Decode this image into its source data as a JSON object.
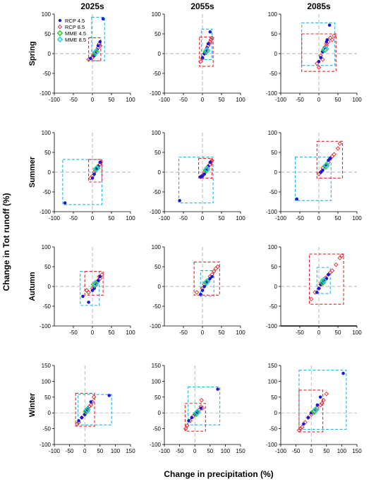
{
  "figure": {
    "column_headers": [
      "2025s",
      "2055s",
      "2085s"
    ],
    "row_labels": [
      "Spring",
      "Summer",
      "Autumn",
      "Winter"
    ],
    "ylabel": "Change in Tot runoff (%)",
    "xlabel": "Change in precipitation (%)",
    "legend": {
      "entries": [
        {
          "name": "RCP 4.5",
          "marker": "filled-circle",
          "color": "#1a1ad6"
        },
        {
          "name": "RCP 8.5",
          "marker": "open-diamond",
          "color": "#e8242b"
        },
        {
          "name": "MME 4.5",
          "marker": "open-diamond",
          "color": "#33cc33"
        },
        {
          "name": "MME 8.5",
          "marker": "open-diamond",
          "color": "#2fd4dc"
        }
      ],
      "placement": "top-left of first panel"
    },
    "colors": {
      "rcp45": "#1a1ad6",
      "rcp85": "#e8242b",
      "mme45": "#33cc33",
      "mme85": "#2fd4dc",
      "box45": "#22b3e6",
      "box85": "#e8242b",
      "crosshair": "#999999"
    }
  },
  "chart_data": [
    {
      "type": "scatter",
      "row": "Spring",
      "col": "2025s",
      "xlim": [
        -100,
        100
      ],
      "ylim": [
        -100,
        100
      ],
      "xticks": [
        -100,
        -50,
        0,
        50,
        100
      ],
      "yticks": [
        -100,
        -50,
        0,
        50,
        100
      ],
      "rcp45": [
        [
          28,
          88
        ],
        [
          20,
          30
        ],
        [
          12,
          10
        ],
        [
          5,
          -5
        ],
        [
          -5,
          -12
        ],
        [
          15,
          20
        ],
        [
          8,
          0
        ]
      ],
      "rcp85": [
        [
          -10,
          -15
        ],
        [
          0,
          -10
        ],
        [
          5,
          0
        ],
        [
          10,
          8
        ],
        [
          15,
          15
        ],
        [
          18,
          25
        ],
        [
          20,
          20
        ],
        [
          12,
          5
        ],
        [
          2,
          -5
        ]
      ],
      "mme45": [
        8,
        2
      ],
      "mme85": [
        10,
        5
      ],
      "box45": [
        -2,
        32,
        -18,
        92
      ],
      "box85": [
        -10,
        22,
        -18,
        40
      ],
      "crosshair": [
        0,
        0
      ]
    },
    {
      "type": "scatter",
      "row": "Spring",
      "col": "2055s",
      "xlim": [
        -100,
        100
      ],
      "ylim": [
        -100,
        100
      ],
      "xticks": [
        -100,
        -50,
        0,
        50,
        100
      ],
      "yticks": [
        -100,
        -50,
        0,
        50,
        100
      ],
      "rcp45": [
        [
          20,
          55
        ],
        [
          15,
          25
        ],
        [
          10,
          10
        ],
        [
          5,
          0
        ],
        [
          0,
          -10
        ],
        [
          12,
          15
        ],
        [
          8,
          5
        ]
      ],
      "rcp85": [
        [
          -5,
          -20
        ],
        [
          0,
          -12
        ],
        [
          5,
          0
        ],
        [
          10,
          10
        ],
        [
          15,
          20
        ],
        [
          20,
          30
        ],
        [
          18,
          25
        ],
        [
          8,
          5
        ],
        [
          25,
          40
        ],
        [
          22,
          35
        ]
      ],
      "mme45": [
        10,
        5
      ],
      "mme85": [
        12,
        8
      ],
      "box45": [
        -3,
        25,
        -15,
        62
      ],
      "box85": [
        -8,
        28,
        -32,
        42
      ],
      "crosshair": [
        0,
        0
      ]
    },
    {
      "type": "scatter",
      "row": "Spring",
      "col": "2085s",
      "xlim": [
        -100,
        100
      ],
      "ylim": [
        -100,
        100
      ],
      "xticks": [
        -100,
        -50,
        0,
        50,
        100
      ],
      "yticks": [
        -100,
        -50,
        0,
        50,
        100
      ],
      "rcp45": [
        [
          28,
          72
        ],
        [
          20,
          30
        ],
        [
          15,
          15
        ],
        [
          10,
          5
        ],
        [
          5,
          -10
        ],
        [
          0,
          -20
        ],
        [
          22,
          35
        ]
      ],
      "rcp85": [
        [
          -5,
          -25
        ],
        [
          0,
          -35
        ],
        [
          5,
          -5
        ],
        [
          10,
          5
        ],
        [
          15,
          15
        ],
        [
          20,
          20
        ],
        [
          25,
          30
        ],
        [
          30,
          40
        ],
        [
          40,
          45
        ],
        [
          35,
          35
        ],
        [
          20,
          25
        ],
        [
          10,
          -15
        ]
      ],
      "mme45": [
        15,
        10
      ],
      "mme85": [
        18,
        12
      ],
      "box45": [
        -45,
        42,
        -30,
        78
      ],
      "box85": [
        -45,
        45,
        -45,
        50
      ],
      "crosshair": [
        0,
        0
      ]
    },
    {
      "type": "scatter",
      "row": "Summer",
      "col": "2025s",
      "xlim": [
        -100,
        100
      ],
      "ylim": [
        -100,
        100
      ],
      "xticks": [
        -100,
        -50,
        0,
        50,
        100
      ],
      "yticks": [
        -100,
        -50,
        0,
        50,
        100
      ],
      "rcp45": [
        [
          -72,
          -78
        ],
        [
          20,
          25
        ],
        [
          15,
          15
        ],
        [
          10,
          5
        ],
        [
          5,
          -5
        ],
        [
          0,
          -15
        ],
        [
          12,
          10
        ]
      ],
      "rcp85": [
        [
          -5,
          -15
        ],
        [
          0,
          -10
        ],
        [
          5,
          0
        ],
        [
          10,
          10
        ],
        [
          15,
          15
        ],
        [
          20,
          20
        ],
        [
          22,
          25
        ],
        [
          8,
          5
        ]
      ],
      "mme45": [
        12,
        10
      ],
      "mme85": [
        10,
        8
      ],
      "box45": [
        -78,
        25,
        -82,
        32
      ],
      "box85": [
        -10,
        25,
        -25,
        32
      ],
      "crosshair": [
        0,
        0
      ]
    },
    {
      "type": "scatter",
      "row": "Summer",
      "col": "2055s",
      "xlim": [
        -100,
        100
      ],
      "ylim": [
        -100,
        100
      ],
      "xticks": [
        -100,
        -50,
        0,
        50,
        100
      ],
      "yticks": [
        -100,
        -50,
        0,
        50,
        100
      ],
      "rcp45": [
        [
          -60,
          -72
        ],
        [
          20,
          25
        ],
        [
          15,
          15
        ],
        [
          10,
          5
        ],
        [
          5,
          -5
        ],
        [
          0,
          -10
        ],
        [
          -5,
          -12
        ]
      ],
      "rcp85": [
        [
          -5,
          -12
        ],
        [
          0,
          -8
        ],
        [
          5,
          0
        ],
        [
          10,
          10
        ],
        [
          15,
          15
        ],
        [
          20,
          20
        ],
        [
          25,
          30
        ],
        [
          22,
          25
        ],
        [
          8,
          5
        ]
      ],
      "mme45": [
        10,
        5
      ],
      "mme85": [
        12,
        8
      ],
      "box45": [
        -62,
        28,
        -78,
        38
      ],
      "box85": [
        -10,
        25,
        -15,
        35
      ],
      "crosshair": [
        0,
        0
      ]
    },
    {
      "type": "scatter",
      "row": "Summer",
      "col": "2085s",
      "xlim": [
        -100,
        100
      ],
      "ylim": [
        -100,
        100
      ],
      "xticks": [
        -100,
        -50,
        0,
        50,
        100
      ],
      "yticks": [
        -100,
        -50,
        0,
        50,
        100
      ],
      "rcp45": [
        [
          -58,
          -68
        ],
        [
          20,
          20
        ],
        [
          15,
          15
        ],
        [
          10,
          5
        ],
        [
          5,
          0
        ],
        [
          25,
          30
        ],
        [
          30,
          35
        ]
      ],
      "rcp85": [
        [
          0,
          -5
        ],
        [
          5,
          0
        ],
        [
          10,
          10
        ],
        [
          15,
          15
        ],
        [
          20,
          20
        ],
        [
          25,
          25
        ],
        [
          30,
          35
        ],
        [
          40,
          45
        ],
        [
          50,
          60
        ],
        [
          55,
          72
        ],
        [
          35,
          40
        ]
      ],
      "mme45": [
        18,
        15
      ],
      "mme85": [
        20,
        18
      ],
      "box45": [
        -62,
        32,
        -72,
        38
      ],
      "box85": [
        -5,
        62,
        -15,
        78
      ],
      "crosshair": [
        0,
        0
      ]
    },
    {
      "type": "scatter",
      "row": "Autumn",
      "col": "2025s",
      "xlim": [
        -100,
        100
      ],
      "ylim": [
        -100,
        100
      ],
      "xticks": [
        -50,
        0,
        50,
        100
      ],
      "yticks": [
        -100,
        -50,
        0,
        50,
        100
      ],
      "rcp45": [
        [
          -25,
          -25
        ],
        [
          -10,
          -40
        ],
        [
          5,
          -5
        ],
        [
          10,
          5
        ],
        [
          15,
          15
        ],
        [
          20,
          25
        ],
        [
          0,
          -10
        ]
      ],
      "rcp85": [
        [
          -15,
          -10
        ],
        [
          -10,
          -15
        ],
        [
          0,
          -5
        ],
        [
          5,
          0
        ],
        [
          10,
          5
        ],
        [
          15,
          15
        ],
        [
          20,
          20
        ],
        [
          25,
          30
        ],
        [
          18,
          25
        ],
        [
          8,
          8
        ]
      ],
      "mme45": [
        5,
        5
      ],
      "mme85": [
        8,
        8
      ],
      "box45": [
        -32,
        18,
        -48,
        38
      ],
      "box85": [
        -20,
        28,
        -22,
        38
      ],
      "crosshair": [
        0,
        0
      ]
    },
    {
      "type": "scatter",
      "row": "Autumn",
      "col": "2055s",
      "xlim": [
        -100,
        100
      ],
      "ylim": [
        -100,
        100
      ],
      "xticks": [
        -50,
        0,
        50,
        100
      ],
      "yticks": [
        -100,
        -50,
        0,
        50,
        100
      ],
      "rcp45": [
        [
          -5,
          -20
        ],
        [
          0,
          -10
        ],
        [
          5,
          0
        ],
        [
          10,
          10
        ],
        [
          15,
          15
        ],
        [
          20,
          20
        ],
        [
          25,
          25
        ]
      ],
      "rcp85": [
        [
          -15,
          -15
        ],
        [
          0,
          -5
        ],
        [
          5,
          5
        ],
        [
          15,
          15
        ],
        [
          20,
          25
        ],
        [
          25,
          30
        ],
        [
          35,
          45
        ],
        [
          40,
          50
        ],
        [
          30,
          38
        ]
      ],
      "mme45": [
        10,
        10
      ],
      "mme85": [
        12,
        12
      ],
      "box45": [
        -5,
        30,
        -25,
        40
      ],
      "box85": [
        -22,
        45,
        -22,
        62
      ],
      "crosshair": [
        0,
        0
      ]
    },
    {
      "type": "scatter",
      "row": "Autumn",
      "col": "2085s",
      "xlim": [
        -100,
        100
      ],
      "ylim": [
        -100,
        100
      ],
      "xticks": [
        -50,
        0,
        50,
        100
      ],
      "yticks": [
        -100,
        -50,
        0,
        50,
        100
      ],
      "rcp45": [
        [
          -5,
          -15
        ],
        [
          0,
          -5
        ],
        [
          5,
          5
        ],
        [
          10,
          10
        ],
        [
          15,
          15
        ],
        [
          20,
          20
        ],
        [
          25,
          30
        ]
      ],
      "rcp85": [
        [
          -20,
          -32
        ],
        [
          -10,
          -15
        ],
        [
          0,
          -5
        ],
        [
          5,
          5
        ],
        [
          15,
          15
        ],
        [
          25,
          30
        ],
        [
          35,
          40
        ],
        [
          45,
          55
        ],
        [
          55,
          72
        ],
        [
          60,
          78
        ],
        [
          30,
          35
        ],
        [
          18,
          22
        ]
      ],
      "mme45": [
        10,
        10
      ],
      "mme85": [
        12,
        15
      ],
      "box45": [
        -5,
        30,
        -18,
        48
      ],
      "box85": [
        -25,
        65,
        -45,
        82
      ],
      "crosshair": [
        0,
        0
      ]
    },
    {
      "type": "scatter",
      "row": "Winter",
      "col": "2025s",
      "xlim": [
        -100,
        150
      ],
      "ylim": [
        -100,
        150
      ],
      "xticks": [
        -100,
        -50,
        0,
        50,
        100,
        150
      ],
      "yticks": [
        -100,
        -50,
        0,
        50,
        100,
        150
      ],
      "rcp45": [
        [
          80,
          55
        ],
        [
          20,
          35
        ],
        [
          10,
          15
        ],
        [
          5,
          5
        ],
        [
          0,
          -5
        ],
        [
          -10,
          -15
        ],
        [
          -20,
          -25
        ]
      ],
      "rcp85": [
        [
          -25,
          -35
        ],
        [
          -20,
          -30
        ],
        [
          -10,
          -15
        ],
        [
          0,
          -5
        ],
        [
          5,
          5
        ],
        [
          10,
          15
        ],
        [
          15,
          20
        ],
        [
          25,
          35
        ],
        [
          30,
          50
        ],
        [
          20,
          25
        ]
      ],
      "mme45": [
        5,
        5
      ],
      "mme85": [
        8,
        10
      ],
      "box45": [
        -22,
        88,
        -38,
        58
      ],
      "box85": [
        -30,
        32,
        -42,
        62
      ],
      "crosshair": [
        0,
        0
      ]
    },
    {
      "type": "scatter",
      "row": "Winter",
      "col": "2055s",
      "xlim": [
        -100,
        150
      ],
      "ylim": [
        -100,
        150
      ],
      "xticks": [
        -100,
        -50,
        0,
        50,
        100,
        150
      ],
      "yticks": [
        -100,
        -50,
        0,
        50,
        100,
        150
      ],
      "rcp45": [
        [
          75,
          75
        ],
        [
          20,
          15
        ],
        [
          10,
          5
        ],
        [
          5,
          0
        ],
        [
          0,
          -5
        ],
        [
          -10,
          -15
        ],
        [
          -20,
          -25
        ]
      ],
      "rcp85": [
        [
          -30,
          -50
        ],
        [
          -25,
          -40
        ],
        [
          -15,
          -25
        ],
        [
          -5,
          -10
        ],
        [
          5,
          0
        ],
        [
          15,
          10
        ],
        [
          20,
          20
        ],
        [
          25,
          15
        ],
        [
          22,
          40
        ],
        [
          10,
          5
        ]
      ],
      "mme45": [
        5,
        -2
      ],
      "mme85": [
        8,
        2
      ],
      "box45": [
        -22,
        82,
        -38,
        82
      ],
      "box85": [
        -32,
        35,
        -58,
        30
      ],
      "crosshair": [
        0,
        0
      ]
    },
    {
      "type": "scatter",
      "row": "Winter",
      "col": "2085s",
      "xlim": [
        -100,
        150
      ],
      "ylim": [
        -100,
        150
      ],
      "xticks": [
        -100,
        -50,
        0,
        50,
        100,
        150
      ],
      "yticks": [
        -100,
        -50,
        0,
        50,
        100,
        150
      ],
      "rcp45": [
        [
          105,
          125
        ],
        [
          30,
          50
        ],
        [
          20,
          25
        ],
        [
          10,
          10
        ],
        [
          0,
          0
        ],
        [
          -10,
          -15
        ],
        [
          -25,
          -35
        ]
      ],
      "rcp85": [
        [
          -40,
          -55
        ],
        [
          -30,
          -45
        ],
        [
          -20,
          -30
        ],
        [
          -10,
          -15
        ],
        [
          0,
          -5
        ],
        [
          10,
          5
        ],
        [
          20,
          15
        ],
        [
          30,
          25
        ],
        [
          40,
          40
        ],
        [
          50,
          60
        ],
        [
          35,
          30
        ],
        [
          -35,
          -50
        ]
      ],
      "mme45": [
        10,
        5
      ],
      "mme85": [
        15,
        10
      ],
      "box45": [
        -40,
        115,
        -52,
        135
      ],
      "box85": [
        -40,
        38,
        -60,
        72
      ],
      "crosshair": [
        0,
        0
      ]
    }
  ]
}
